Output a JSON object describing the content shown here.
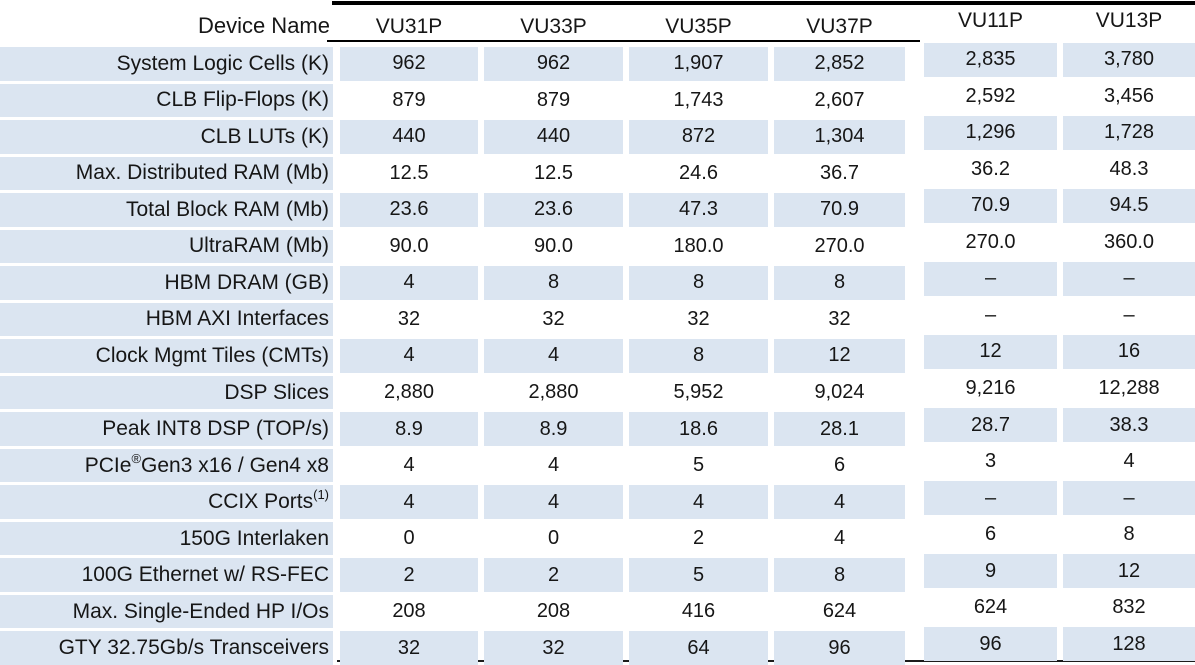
{
  "table": {
    "corner_label": "Device Name",
    "columns": [
      "VU31P",
      "VU33P",
      "VU35P",
      "VU37P",
      "VU11P",
      "VU13P"
    ],
    "rows": [
      {
        "pre": "System Logic Cells (K)",
        "sup": "",
        "post": "",
        "values": [
          "962",
          "962",
          "1,907",
          "2,852",
          "2,835",
          "3,780"
        ]
      },
      {
        "pre": "CLB Flip-Flops (K)",
        "sup": "",
        "post": "",
        "values": [
          "879",
          "879",
          "1,743",
          "2,607",
          "2,592",
          "3,456"
        ]
      },
      {
        "pre": "CLB LUTs (K)",
        "sup": "",
        "post": "",
        "values": [
          "440",
          "440",
          "872",
          "1,304",
          "1,296",
          "1,728"
        ]
      },
      {
        "pre": "Max. Distributed RAM (Mb)",
        "sup": "",
        "post": "",
        "values": [
          "12.5",
          "12.5",
          "24.6",
          "36.7",
          "36.2",
          "48.3"
        ]
      },
      {
        "pre": "Total Block RAM (Mb)",
        "sup": "",
        "post": "",
        "values": [
          "23.6",
          "23.6",
          "47.3",
          "70.9",
          "70.9",
          "94.5"
        ]
      },
      {
        "pre": "UltraRAM (Mb)",
        "sup": "",
        "post": "",
        "values": [
          "90.0",
          "90.0",
          "180.0",
          "270.0",
          "270.0",
          "360.0"
        ]
      },
      {
        "pre": "HBM DRAM (GB)",
        "sup": "",
        "post": "",
        "values": [
          "4",
          "8",
          "8",
          "8",
          "–",
          "–"
        ]
      },
      {
        "pre": "HBM AXI Interfaces",
        "sup": "",
        "post": "",
        "values": [
          "32",
          "32",
          "32",
          "32",
          "–",
          "–"
        ]
      },
      {
        "pre": "Clock Mgmt Tiles (CMTs)",
        "sup": "",
        "post": "",
        "values": [
          "4",
          "4",
          "8",
          "12",
          "12",
          "16"
        ]
      },
      {
        "pre": "DSP Slices",
        "sup": "",
        "post": "",
        "values": [
          "2,880",
          "2,880",
          "5,952",
          "9,024",
          "9,216",
          "12,288"
        ]
      },
      {
        "pre": "Peak INT8 DSP (TOP/s)",
        "sup": "",
        "post": "",
        "values": [
          "8.9",
          "8.9",
          "18.6",
          "28.1",
          "28.7",
          "38.3"
        ]
      },
      {
        "pre": "PCIe",
        "sup": "®",
        "post": " Gen3 x16 / Gen4 x8",
        "values": [
          "4",
          "4",
          "5",
          "6",
          "3",
          "4"
        ]
      },
      {
        "pre": "CCIX Ports",
        "sup": "(1)",
        "post": "",
        "values": [
          "4",
          "4",
          "4",
          "4",
          "–",
          "–"
        ]
      },
      {
        "pre": "150G Interlaken",
        "sup": "",
        "post": "",
        "values": [
          "0",
          "0",
          "2",
          "4",
          "6",
          "8"
        ]
      },
      {
        "pre": "100G Ethernet w/ RS-FEC",
        "sup": "",
        "post": "",
        "values": [
          "2",
          "2",
          "5",
          "8",
          "9",
          "12"
        ]
      },
      {
        "pre": "Max. Single-Ended HP I/Os",
        "sup": "",
        "post": "",
        "values": [
          "208",
          "208",
          "416",
          "624",
          "624",
          "832"
        ]
      },
      {
        "pre": "GTY 32.75Gb/s Transceivers",
        "sup": "",
        "post": "",
        "values": [
          "32",
          "32",
          "64",
          "96",
          "96",
          "128"
        ]
      }
    ]
  },
  "colors": {
    "row_fill": "#dbe5f1",
    "text": "#161616",
    "rule": "#000000"
  }
}
